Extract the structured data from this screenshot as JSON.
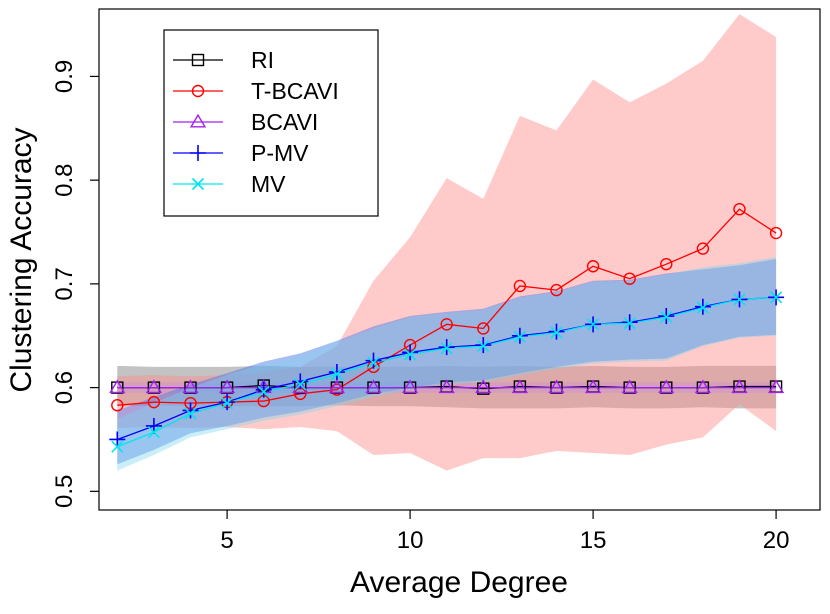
{
  "chart_data": {
    "type": "line",
    "title": "",
    "xlabel": "Average Degree",
    "ylabel": "Clustering Accuracy",
    "xlim": [
      1.5,
      21.2
    ],
    "ylim": [
      0.482,
      0.965
    ],
    "xticks": [
      5,
      10,
      15,
      20
    ],
    "yticks": [
      0.5,
      0.6,
      0.7,
      0.8,
      0.9
    ],
    "ytick_labels": [
      "0.5",
      "0.6",
      "0.7",
      "0.8",
      "0.9"
    ],
    "xtick_labels": [
      "5",
      "10",
      "15",
      "20"
    ],
    "grid": false,
    "legend_position": "top-left",
    "x": [
      2,
      3,
      4,
      5,
      6,
      7,
      8,
      9,
      10,
      11,
      12,
      13,
      14,
      15,
      16,
      17,
      18,
      19,
      20
    ],
    "series": [
      {
        "name": "RI",
        "color": "#000000",
        "marker": "square",
        "band_color": "#7a7a7a",
        "band_opacity": 0.45,
        "values": [
          0.6,
          0.6,
          0.6,
          0.6,
          0.602,
          0.6,
          0.6,
          0.6,
          0.6,
          0.601,
          0.599,
          0.601,
          0.6,
          0.601,
          0.6,
          0.6,
          0.6,
          0.601,
          0.601
        ],
        "lower": [
          0.582,
          0.583,
          0.582,
          0.582,
          0.582,
          0.582,
          0.583,
          0.582,
          0.582,
          0.581,
          0.58,
          0.58,
          0.58,
          0.581,
          0.58,
          0.58,
          0.581,
          0.58,
          0.58
        ],
        "upper": [
          0.621,
          0.62,
          0.62,
          0.62,
          0.621,
          0.62,
          0.62,
          0.62,
          0.62,
          0.621,
          0.62,
          0.621,
          0.62,
          0.621,
          0.62,
          0.62,
          0.621,
          0.621,
          0.621
        ]
      },
      {
        "name": "T-BCAVI",
        "color": "#ff0000",
        "marker": "circle",
        "band_color": "#ff8a8a",
        "band_opacity": 0.45,
        "values": [
          0.583,
          0.586,
          0.585,
          0.586,
          0.587,
          0.594,
          0.598,
          0.62,
          0.641,
          0.661,
          0.657,
          0.698,
          0.694,
          0.717,
          0.705,
          0.719,
          0.734,
          0.772,
          0.749
        ],
        "lower": [
          0.561,
          0.562,
          0.561,
          0.562,
          0.56,
          0.562,
          0.558,
          0.535,
          0.537,
          0.52,
          0.532,
          0.532,
          0.539,
          0.537,
          0.535,
          0.545,
          0.552,
          0.584,
          0.558
        ],
        "upper": [
          0.611,
          0.612,
          0.611,
          0.612,
          0.615,
          0.62,
          0.64,
          0.703,
          0.745,
          0.802,
          0.782,
          0.862,
          0.848,
          0.897,
          0.875,
          0.893,
          0.915,
          0.96,
          0.938
        ]
      },
      {
        "name": "BCAVI",
        "color": "#a020f0",
        "marker": "triangle",
        "band_color": "#c080f0",
        "band_opacity": 0.3,
        "values": [
          0.6,
          0.6,
          0.6,
          0.6,
          0.6,
          0.6,
          0.6,
          0.6,
          0.6,
          0.6,
          0.6,
          0.6,
          0.6,
          0.6,
          0.6,
          0.6,
          0.6,
          0.6,
          0.6
        ],
        "lower": [
          0.595,
          0.595,
          0.595,
          0.595,
          0.595,
          0.595,
          0.595,
          0.595,
          0.595,
          0.595,
          0.595,
          0.595,
          0.595,
          0.595,
          0.595,
          0.595,
          0.595,
          0.595,
          0.595
        ],
        "upper": [
          0.605,
          0.605,
          0.605,
          0.605,
          0.605,
          0.605,
          0.605,
          0.605,
          0.605,
          0.605,
          0.605,
          0.605,
          0.605,
          0.605,
          0.605,
          0.605,
          0.605,
          0.605,
          0.605
        ]
      },
      {
        "name": "P-MV",
        "color": "#0000ff",
        "marker": "plus",
        "band_color": "#5a78e8",
        "band_opacity": 0.5,
        "values": [
          0.55,
          0.563,
          0.578,
          0.586,
          0.598,
          0.606,
          0.615,
          0.626,
          0.634,
          0.639,
          0.641,
          0.65,
          0.654,
          0.661,
          0.663,
          0.669,
          0.678,
          0.685,
          0.687
        ],
        "lower": [
          0.526,
          0.54,
          0.556,
          0.563,
          0.571,
          0.577,
          0.585,
          0.594,
          0.6,
          0.605,
          0.607,
          0.614,
          0.62,
          0.625,
          0.627,
          0.628,
          0.641,
          0.649,
          0.651
        ],
        "upper": [
          0.578,
          0.591,
          0.603,
          0.614,
          0.625,
          0.633,
          0.645,
          0.659,
          0.669,
          0.673,
          0.676,
          0.688,
          0.693,
          0.703,
          0.704,
          0.71,
          0.714,
          0.718,
          0.724
        ]
      },
      {
        "name": "MV",
        "color": "#00e5ee",
        "marker": "x",
        "band_color": "#7ad7ee",
        "band_opacity": 0.4,
        "values": [
          0.543,
          0.557,
          0.575,
          0.585,
          0.596,
          0.603,
          0.613,
          0.624,
          0.632,
          0.638,
          0.64,
          0.649,
          0.653,
          0.661,
          0.662,
          0.668,
          0.677,
          0.685,
          0.687
        ],
        "lower": [
          0.52,
          0.535,
          0.552,
          0.56,
          0.568,
          0.574,
          0.582,
          0.591,
          0.598,
          0.603,
          0.605,
          0.612,
          0.618,
          0.623,
          0.625,
          0.626,
          0.64,
          0.648,
          0.65
        ],
        "upper": [
          0.57,
          0.585,
          0.6,
          0.612,
          0.623,
          0.631,
          0.644,
          0.657,
          0.668,
          0.672,
          0.675,
          0.687,
          0.692,
          0.702,
          0.703,
          0.709,
          0.716,
          0.72,
          0.726
        ]
      }
    ]
  }
}
